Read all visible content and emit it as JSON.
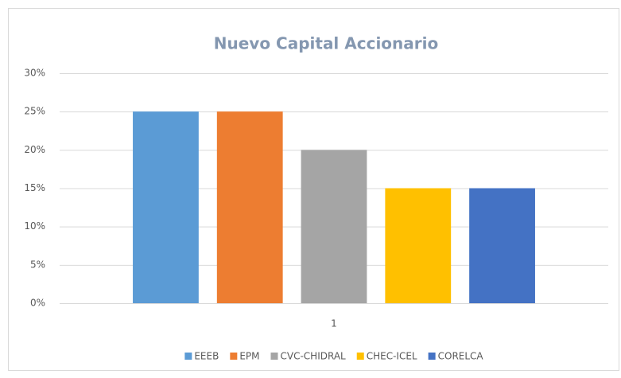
{
  "chart_data": {
    "type": "bar",
    "title": "Nuevo Capital Accionario",
    "categories": [
      "1"
    ],
    "series": [
      {
        "name": "EEEB",
        "color": "#5b9bd5",
        "values": [
          25
        ]
      },
      {
        "name": "EPM",
        "color": "#ed7d31",
        "values": [
          25
        ]
      },
      {
        "name": "CVC-CHIDRAL",
        "color": "#a5a5a5",
        "values": [
          20
        ]
      },
      {
        "name": "CHEC-ICEL",
        "color": "#ffc000",
        "values": [
          15
        ]
      },
      {
        "name": "CORELCA",
        "color": "#4472c4",
        "values": [
          15
        ]
      }
    ],
    "ylim": [
      0,
      30
    ],
    "yticks": [
      {
        "value": 0,
        "label": "0%"
      },
      {
        "value": 5,
        "label": "5%"
      },
      {
        "value": 10,
        "label": "10%"
      },
      {
        "value": 15,
        "label": "15%"
      },
      {
        "value": 20,
        "label": "20%"
      },
      {
        "value": 25,
        "label": "25%"
      },
      {
        "value": 30,
        "label": "30%"
      }
    ],
    "grid": true,
    "legend": "bottom"
  }
}
